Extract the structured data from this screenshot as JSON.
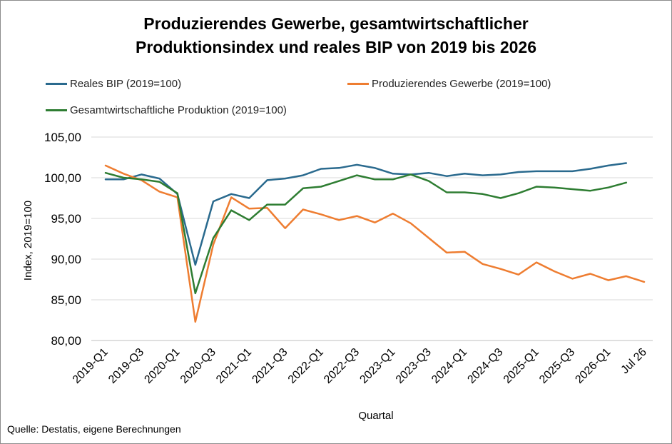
{
  "title_line1": "Produzierendes Gewerbe, gesamtwirtschaftlicher",
  "title_line2": "Produktionsindex und reales BIP von 2019 bis 2026",
  "source": "Quelle: Destatis, eigene Berechnungen",
  "colors": {
    "bip": "#2a6a8e",
    "gewerbe": "#ee7d31",
    "gesamt": "#2e7d32",
    "grid": "#d9d9d9"
  },
  "chart_data": {
    "type": "line",
    "xlabel": "Quartal",
    "ylabel": "Index, 2019=100",
    "ylim": [
      80,
      105
    ],
    "yticks": [
      "80,00",
      "85,00",
      "90,00",
      "95,00",
      "100,00",
      "105,00"
    ],
    "grid": true,
    "legend_position": "top",
    "x_tick_labels": [
      "2019-Q1",
      "2019-Q3",
      "2020-Q1",
      "2020-Q3",
      "2021-Q1",
      "2021-Q3",
      "2022-Q1",
      "2022-Q3",
      "2023-Q1",
      "2023-Q3",
      "2024-Q1",
      "2024-Q3",
      "2025-Q1",
      "2025-Q3",
      "2026-Q1",
      "Jul 26"
    ],
    "x": [
      "2019-Q1",
      "2019-Q2",
      "2019-Q3",
      "2019-Q4",
      "2020-Q1",
      "2020-Q2",
      "2020-Q3",
      "2020-Q4",
      "2021-Q1",
      "2021-Q2",
      "2021-Q3",
      "2021-Q4",
      "2022-Q1",
      "2022-Q2",
      "2022-Q3",
      "2022-Q4",
      "2023-Q1",
      "2023-Q2",
      "2023-Q3",
      "2023-Q4",
      "2024-Q1",
      "2024-Q2",
      "2024-Q3",
      "2024-Q4",
      "2025-Q1",
      "2025-Q2",
      "2025-Q3",
      "2025-Q4",
      "2026-Q1",
      "2026-Q2",
      "Jul 26"
    ],
    "series": [
      {
        "name": "Reales BIP (2019=100)",
        "color": "#2a6a8e",
        "values": [
          99.8,
          99.8,
          100.4,
          99.9,
          98.0,
          89.3,
          97.1,
          98.0,
          97.5,
          99.7,
          99.9,
          100.3,
          101.1,
          101.2,
          101.6,
          101.2,
          100.5,
          100.4,
          100.6,
          100.2,
          100.5,
          100.3,
          100.4,
          100.7,
          100.8,
          100.8,
          100.8,
          101.1,
          101.5,
          101.8,
          null
        ]
      },
      {
        "name": "Produzierendes Gewerbe (2019=100)",
        "color": "#ee7d31",
        "values": [
          101.5,
          100.5,
          99.7,
          98.3,
          97.6,
          82.3,
          91.8,
          97.6,
          96.2,
          96.3,
          93.8,
          96.1,
          95.5,
          94.8,
          95.3,
          94.5,
          95.6,
          94.4,
          92.6,
          90.8,
          90.9,
          89.4,
          88.8,
          88.1,
          89.6,
          88.5,
          87.6,
          88.2,
          87.4,
          87.9,
          87.2
        ]
      },
      {
        "name": "Gesamtwirtschaftliche Produktion (2019=100)",
        "color": "#2e7d32",
        "values": [
          100.6,
          100.0,
          99.8,
          99.5,
          98.1,
          85.8,
          92.6,
          96.0,
          94.8,
          96.7,
          96.7,
          98.7,
          98.9,
          99.6,
          100.3,
          99.8,
          99.8,
          100.4,
          99.6,
          98.2,
          98.2,
          98.0,
          97.5,
          98.1,
          98.9,
          98.8,
          98.6,
          98.4,
          98.8,
          99.4,
          null
        ]
      }
    ]
  }
}
